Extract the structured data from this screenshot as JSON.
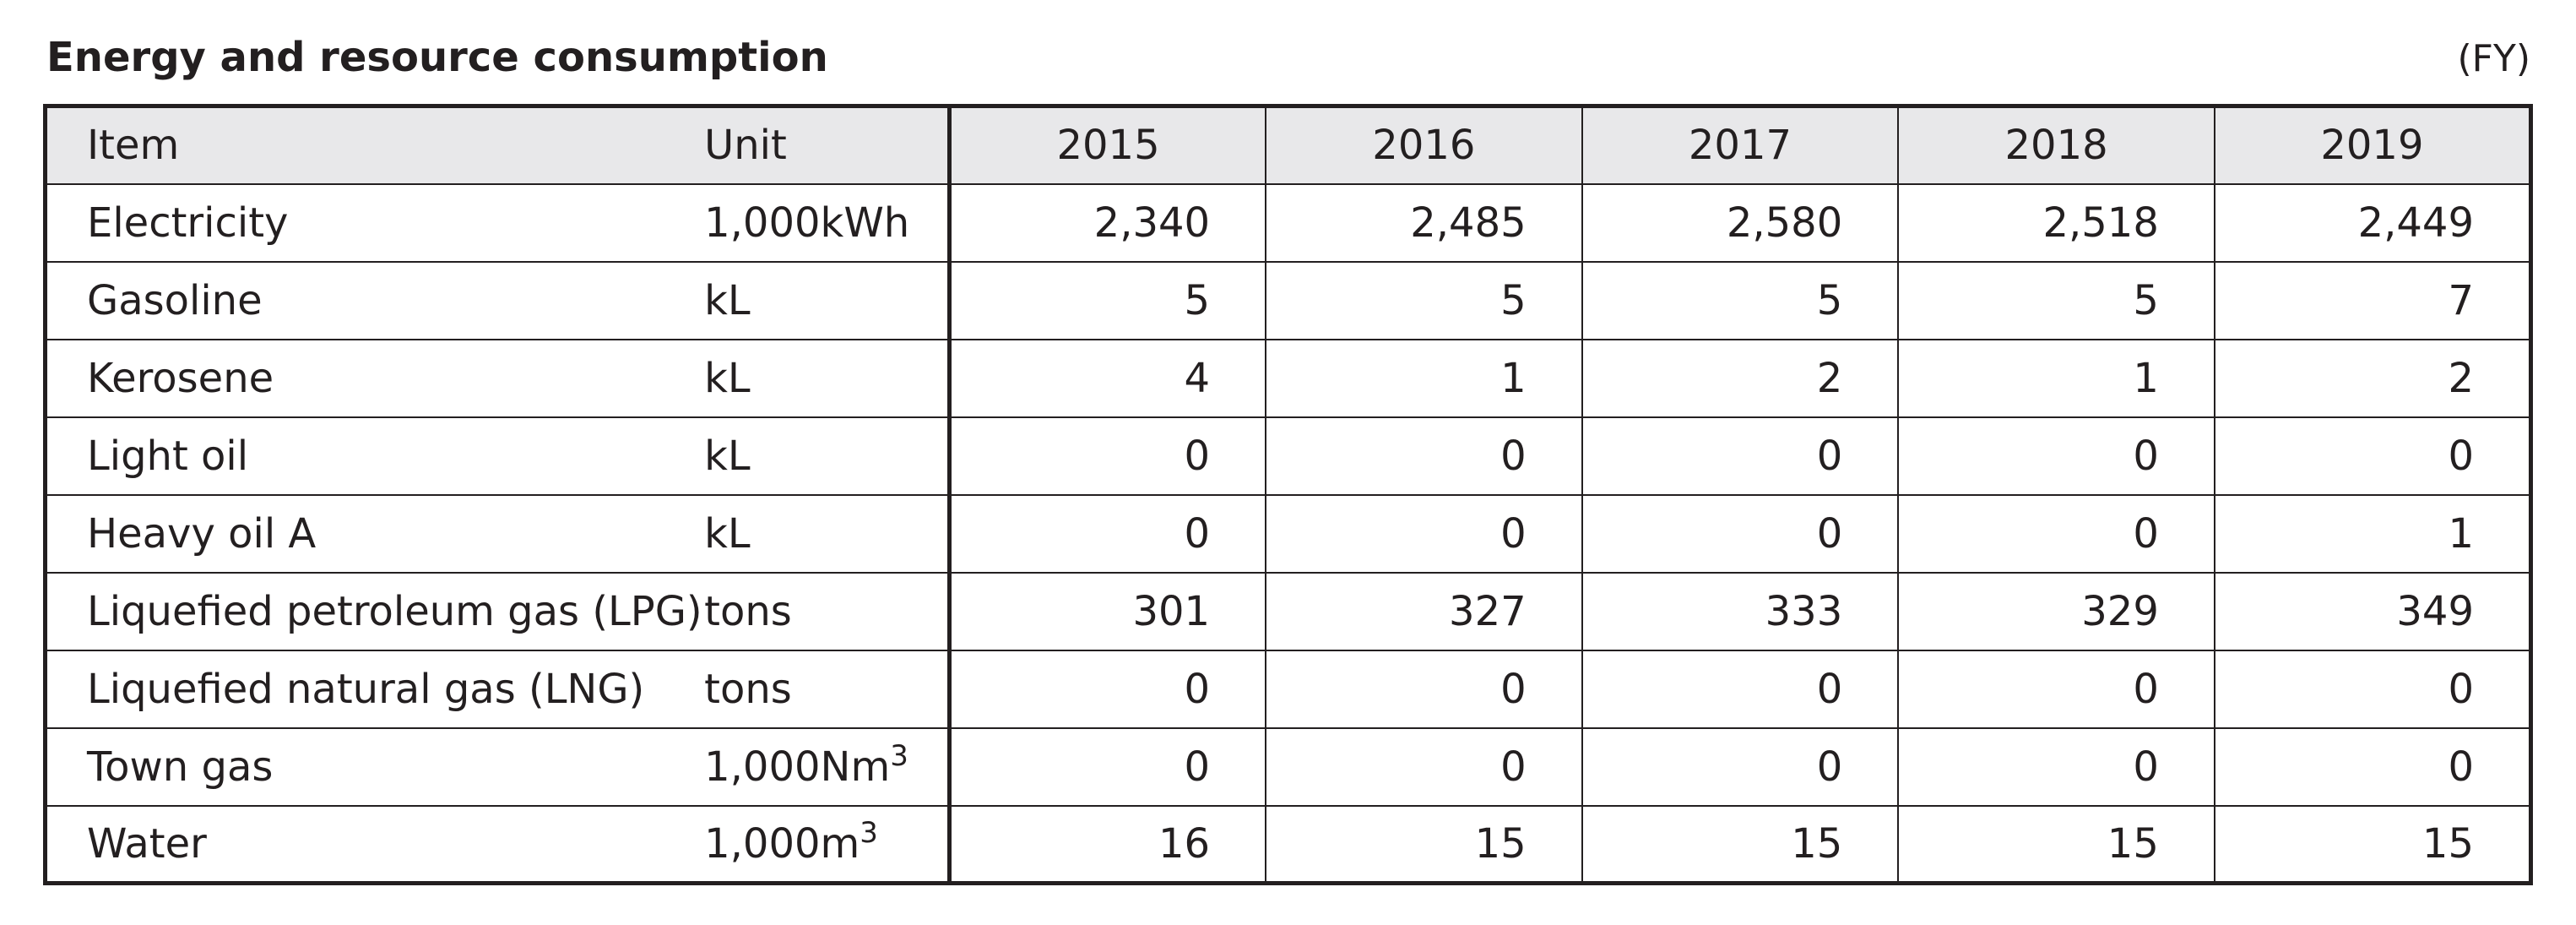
{
  "header": {
    "title": "Energy and resource consumption",
    "fiscal_note": "(FY)"
  },
  "table": {
    "columns": [
      "Item",
      "Unit",
      "2015",
      "2016",
      "2017",
      "2018",
      "2019"
    ],
    "rows": [
      {
        "item": "Electricity",
        "unit": "1,000kWh",
        "unit_sup": "",
        "values": [
          "2,340",
          "2,485",
          "2,580",
          "2,518",
          "2,449"
        ]
      },
      {
        "item": "Gasoline",
        "unit": "kL",
        "unit_sup": "",
        "values": [
          "5",
          "5",
          "5",
          "5",
          "7"
        ]
      },
      {
        "item": "Kerosene",
        "unit": "kL",
        "unit_sup": "",
        "values": [
          "4",
          "1",
          "2",
          "1",
          "2"
        ]
      },
      {
        "item": "Light oil",
        "unit": "kL",
        "unit_sup": "",
        "values": [
          "0",
          "0",
          "0",
          "0",
          "0"
        ]
      },
      {
        "item": "Heavy oil A",
        "unit": "kL",
        "unit_sup": "",
        "values": [
          "0",
          "0",
          "0",
          "0",
          "1"
        ]
      },
      {
        "item": "Liquefied petroleum gas (LPG)",
        "unit": "tons",
        "unit_sup": "",
        "values": [
          "301",
          "327",
          "333",
          "329",
          "349"
        ]
      },
      {
        "item": "Liquefied natural gas (LNG)",
        "unit": "tons",
        "unit_sup": "",
        "values": [
          "0",
          "0",
          "0",
          "0",
          "0"
        ]
      },
      {
        "item": "Town gas",
        "unit": "1,000Nm",
        "unit_sup": "3",
        "values": [
          "0",
          "0",
          "0",
          "0",
          "0"
        ]
      },
      {
        "item": "Water",
        "unit": "1,000m",
        "unit_sup": "3",
        "values": [
          "16",
          "15",
          "15",
          "15",
          "15"
        ]
      }
    ]
  }
}
